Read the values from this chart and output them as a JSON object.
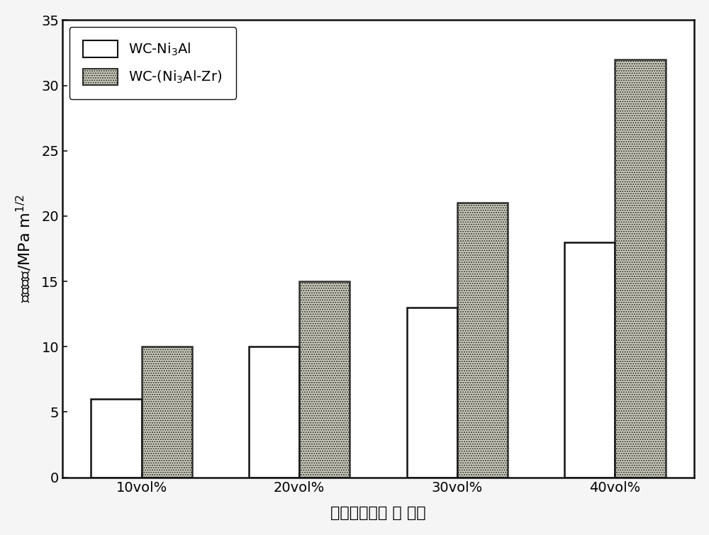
{
  "categories": [
    "10vol%",
    "20vol%",
    "30vol%",
    "40vol%"
  ],
  "series1_label": "WC-Ni$_3$Al",
  "series2_label": "WC-(Ni$_3$Al-Zr)",
  "series1_values": [
    6,
    10,
    13,
    18
  ],
  "series2_values": [
    10,
    15,
    21,
    32
  ],
  "series1_color": "#ffffff",
  "series2_color": "#c8c8b8",
  "bar_edgecolor": "#111111",
  "ylabel": "断裂韧性/MPa m$^{1/2}$",
  "xlabel": "粘结相体积百 分 含量",
  "ylim": [
    0,
    35
  ],
  "yticks": [
    0,
    5,
    10,
    15,
    20,
    25,
    30,
    35
  ],
  "bar_width": 0.32,
  "figsize": [
    10.0,
    7.55
  ],
  "dpi": 100,
  "background_color": "#f5f5f5",
  "axes_background_color": "#ffffff",
  "label_fontsize": 16,
  "tick_fontsize": 14,
  "legend_fontsize": 14,
  "legend_facecolor": "#ffffff"
}
